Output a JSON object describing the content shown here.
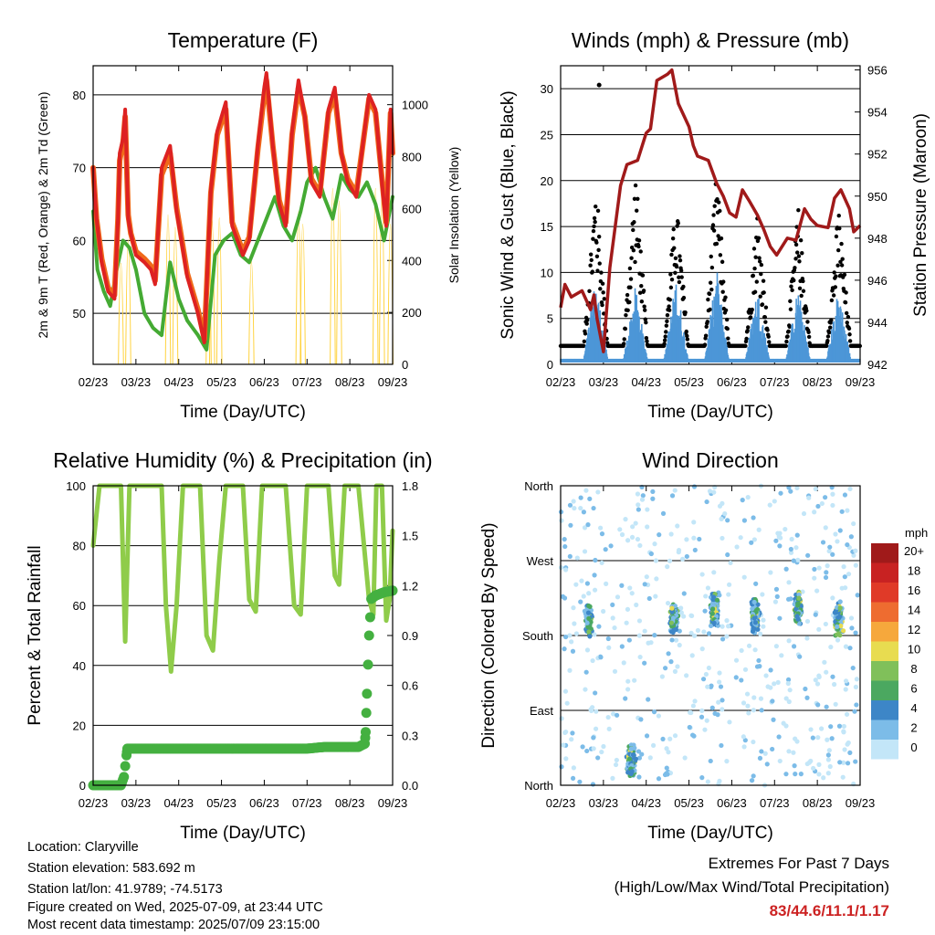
{
  "footer": {
    "location": "Location: Claryville",
    "elevation": "Station elevation: 583.692 m",
    "latlon": "Station lat/lon: 41.9789; -74.5173",
    "created": "Figure created on Wed, 2025-07-09, at 23:44 UTC",
    "recent": "Most recent data timestamp: 2025/07/09 23:15:00"
  },
  "extremes": {
    "title": "Extremes For Past 7 Days",
    "subtitle": "(High/Low/Max Wind/Total Precipitation)",
    "values": "83/44.6/11.1/1.17",
    "color": "#cc2222"
  },
  "chart_data": [
    {
      "id": "temperature",
      "type": "line",
      "title": "Temperature (F)",
      "xlabel": "Time (Day/UTC)",
      "ylabel": "2m & 9m T (Red, Orange) & 2m Td (Green)",
      "y2label": "Solar Insolation (Yellow)",
      "x_ticks": [
        "02/23",
        "03/23",
        "04/23",
        "05/23",
        "06/23",
        "07/23",
        "08/23",
        "09/23"
      ],
      "xlim": [
        0,
        7
      ],
      "ylim": [
        43,
        84
      ],
      "y_ticks": [
        50,
        60,
        70,
        80
      ],
      "y2lim": [
        0,
        1150
      ],
      "y2_ticks": [
        0,
        200,
        400,
        600,
        800,
        1000
      ],
      "grid_y": true,
      "series": [
        {
          "color": "#dd2222",
          "x": [
            0,
            0.08,
            0.2,
            0.35,
            0.5,
            0.58,
            0.62,
            0.7,
            0.75,
            0.82,
            0.88,
            1.0,
            1.2,
            1.35,
            1.45,
            1.6,
            1.8,
            1.95,
            2.2,
            2.45,
            2.6,
            2.75,
            2.9,
            3.1,
            3.25,
            3.5,
            3.65,
            3.85,
            4.0,
            4.05,
            4.2,
            4.35,
            4.5,
            4.65,
            4.8,
            4.95,
            5.1,
            5.3,
            5.5,
            5.65,
            5.8,
            5.95,
            6.15,
            6.3,
            6.45,
            6.6,
            6.75,
            6.85,
            6.95,
            7.0
          ],
          "values": [
            70,
            63,
            57,
            53,
            52,
            63,
            72,
            74,
            78,
            63,
            61,
            58,
            57,
            56,
            54,
            70,
            73,
            64,
            55,
            50,
            46,
            67,
            75,
            79,
            62,
            58,
            60,
            73,
            81,
            83,
            73,
            65,
            62,
            75,
            82,
            77,
            68,
            66,
            78,
            81,
            72,
            68,
            66,
            73,
            80,
            78,
            68,
            62,
            78,
            72
          ]
        },
        {
          "color": "#f06a1a",
          "x": [
            0,
            0.08,
            0.2,
            0.35,
            0.5,
            0.58,
            0.62,
            0.7,
            0.75,
            0.82,
            0.88,
            1.0,
            1.2,
            1.35,
            1.45,
            1.6,
            1.8,
            1.95,
            2.2,
            2.45,
            2.6,
            2.75,
            2.9,
            3.1,
            3.25,
            3.5,
            3.65,
            3.85,
            4.0,
            4.05,
            4.2,
            4.35,
            4.5,
            4.65,
            4.8,
            4.95,
            5.1,
            5.3,
            5.5,
            5.65,
            5.8,
            5.95,
            6.15,
            6.3,
            6.45,
            6.6,
            6.75,
            6.85,
            6.95,
            7.0
          ],
          "values": [
            70,
            63,
            57.5,
            53.5,
            52.5,
            63,
            71,
            73.5,
            77,
            63.5,
            61,
            58.5,
            57.5,
            56.5,
            54.5,
            69,
            72,
            64.5,
            55.5,
            50.5,
            46.5,
            66.5,
            74.5,
            78,
            62.5,
            58.5,
            60.5,
            72.5,
            80,
            82,
            73,
            65.5,
            62.5,
            74.5,
            81,
            77,
            68.5,
            66.5,
            77.5,
            80,
            72,
            68.5,
            66.5,
            73,
            79.5,
            77.5,
            68.5,
            62.5,
            77.5,
            72
          ]
        },
        {
          "color": "#44aa33",
          "x": [
            0,
            0.1,
            0.25,
            0.4,
            0.55,
            0.7,
            0.85,
            1.0,
            1.2,
            1.4,
            1.6,
            1.8,
            2.0,
            2.2,
            2.45,
            2.65,
            2.85,
            3.05,
            3.25,
            3.45,
            3.65,
            3.85,
            4.05,
            4.25,
            4.45,
            4.65,
            4.85,
            5.0,
            5.2,
            5.4,
            5.6,
            5.8,
            6.0,
            6.2,
            6.4,
            6.6,
            6.8,
            7.0
          ],
          "values": [
            64,
            56,
            53,
            51,
            56,
            60,
            59,
            56,
            50,
            48,
            47,
            57,
            52,
            49,
            47,
            45,
            58,
            60,
            61,
            58,
            57,
            60,
            63,
            66,
            62,
            60,
            64,
            68,
            70,
            66,
            63,
            69,
            67,
            66,
            68,
            65,
            60,
            66
          ]
        }
      ],
      "solar_color": "#ffd23c",
      "solar_peaks": [
        {
          "x": 0.65,
          "value": 650
        },
        {
          "x": 0.82,
          "value": 800
        },
        {
          "x": 1.75,
          "value": 960
        },
        {
          "x": 1.92,
          "value": 880
        },
        {
          "x": 2.7,
          "value": 800
        },
        {
          "x": 2.78,
          "value": 930
        },
        {
          "x": 2.95,
          "value": 940
        },
        {
          "x": 3.7,
          "value": 660
        },
        {
          "x": 4.8,
          "value": 980
        },
        {
          "x": 4.9,
          "value": 900
        },
        {
          "x": 5.6,
          "value": 1130
        },
        {
          "x": 5.75,
          "value": 1050
        },
        {
          "x": 6.6,
          "value": 1130
        },
        {
          "x": 6.75,
          "value": 1090
        },
        {
          "x": 6.95,
          "value": 900
        }
      ]
    },
    {
      "id": "winds",
      "type": "scatter",
      "title": "Winds (mph) & Pressure (mb)",
      "xlabel": "Time (Day/UTC)",
      "ylabel": "Sonic Wind & Gust (Blue, Black)",
      "y2label": "Station Pressure (Maroon)",
      "x_ticks": [
        "02/23",
        "03/23",
        "04/23",
        "05/23",
        "06/23",
        "07/23",
        "08/23",
        "09/23"
      ],
      "xlim": [
        0,
        7
      ],
      "ylim": [
        0,
        32.5
      ],
      "y_ticks": [
        0,
        5,
        10,
        15,
        20,
        25,
        30
      ],
      "y2lim": [
        942,
        956.2
      ],
      "y2_ticks": [
        942,
        944,
        946,
        948,
        950,
        952,
        954,
        956
      ],
      "grid_y": true,
      "wind_color": "#4c96d7",
      "gust_color": "#000000",
      "pressure_color": "#a01a1a",
      "max_gust": {
        "x": 0.9,
        "value": 30.4
      },
      "pressure": {
        "x": [
          0,
          0.1,
          0.25,
          0.5,
          0.7,
          0.78,
          0.85,
          1.0,
          1.15,
          1.4,
          1.55,
          1.8,
          2.0,
          2.1,
          2.25,
          2.5,
          2.6,
          2.75,
          3.0,
          3.1,
          3.2,
          3.45,
          3.65,
          3.8,
          3.95,
          4.1,
          4.25,
          4.4,
          4.6,
          4.75,
          4.9,
          5.05,
          5.3,
          5.5,
          5.7,
          5.85,
          6.0,
          6.25,
          6.4,
          6.55,
          6.75,
          6.85,
          7.0
        ],
        "values": [
          944.7,
          945.8,
          945.2,
          945.5,
          944.6,
          945.3,
          944.2,
          942.6,
          946.6,
          950.5,
          951.5,
          951.7,
          953.0,
          953.2,
          955.5,
          955.8,
          956.0,
          954.4,
          953.3,
          952.4,
          951.9,
          951.7,
          950.6,
          950.0,
          949.2,
          949.0,
          950.3,
          949.8,
          949.1,
          948.4,
          947.6,
          947.2,
          948.0,
          947.9,
          949.4,
          948.9,
          948.6,
          948.5,
          949.9,
          950.3,
          949.4,
          948.3,
          948.6
        ]
      },
      "day_peaks": [
        {
          "x": 0.82,
          "gust": 17,
          "wind": 9
        },
        {
          "x": 1.75,
          "gust": 18,
          "wind": 8
        },
        {
          "x": 2.7,
          "gust": 15,
          "wind": 9
        },
        {
          "x": 3.65,
          "gust": 18,
          "wind": 10
        },
        {
          "x": 4.6,
          "gust": 14,
          "wind": 8
        },
        {
          "x": 5.55,
          "gust": 14,
          "wind": 8
        },
        {
          "x": 6.5,
          "gust": 14,
          "wind": 8
        }
      ]
    },
    {
      "id": "humidity",
      "type": "line",
      "title": "Relative Humidity (%) & Precipitation (in)",
      "xlabel": "Time (Day/UTC)",
      "ylabel": "Percent & Total Rainfall",
      "x_ticks": [
        "02/23",
        "03/23",
        "04/23",
        "05/23",
        "06/23",
        "07/23",
        "08/23",
        "09/23"
      ],
      "xlim": [
        0,
        7
      ],
      "ylim": [
        0,
        100
      ],
      "y_ticks": [
        0,
        20,
        40,
        60,
        80,
        100
      ],
      "y2lim": [
        0,
        1.8
      ],
      "y2_ticks": [
        "0.0",
        "0.3",
        "0.6",
        "0.9",
        "1.2",
        "1.5",
        "1.8"
      ],
      "grid_y": true,
      "rh_color": "#8fcc4a",
      "precip_color": "#44b040",
      "rh": {
        "x": [
          0,
          0.15,
          0.3,
          0.45,
          0.65,
          0.75,
          0.85,
          0.95,
          1.05,
          1.2,
          1.4,
          1.6,
          1.7,
          1.82,
          1.95,
          2.1,
          2.3,
          2.5,
          2.65,
          2.8,
          2.95,
          3.1,
          3.3,
          3.5,
          3.65,
          3.8,
          3.95,
          4.1,
          4.3,
          4.5,
          4.7,
          4.85,
          5.0,
          5.1,
          5.3,
          5.5,
          5.65,
          5.75,
          5.88,
          6.0,
          6.2,
          6.45,
          6.55,
          6.62,
          6.75,
          6.85,
          6.93,
          7.0
        ],
        "values": [
          80,
          100,
          100,
          100,
          100,
          48,
          100,
          100,
          100,
          100,
          100,
          100,
          60,
          38,
          60,
          100,
          100,
          100,
          50,
          45,
          75,
          100,
          100,
          100,
          62,
          58,
          100,
          100,
          100,
          100,
          60,
          57,
          100,
          100,
          100,
          100,
          70,
          67,
          100,
          100,
          100,
          62,
          57,
          100,
          100,
          55,
          62,
          85
        ]
      },
      "precip": {
        "x": [
          0,
          0.2,
          0.4,
          0.55,
          0.65,
          0.72,
          0.78,
          0.8,
          1.0,
          2.0,
          3.0,
          4.0,
          5.0,
          5.4,
          5.8,
          6.0,
          6.2,
          6.35,
          6.37,
          6.4,
          6.45,
          6.5,
          6.6,
          6.8,
          7.0
        ],
        "values": [
          0,
          0,
          0,
          0,
          0,
          0.05,
          0.18,
          0.22,
          0.22,
          0.22,
          0.22,
          0.22,
          0.22,
          0.23,
          0.23,
          0.23,
          0.23,
          0.25,
          0.32,
          0.55,
          0.9,
          1.12,
          1.14,
          1.16,
          1.17
        ]
      }
    },
    {
      "id": "direction",
      "type": "scatter",
      "title": "Wind Direction",
      "xlabel": "Time (Day/UTC)",
      "ylabel": "Direction (Colored By Speed)",
      "x_ticks": [
        "02/23",
        "03/23",
        "04/23",
        "05/23",
        "06/23",
        "07/23",
        "08/23",
        "09/23"
      ],
      "xlim": [
        0,
        7
      ],
      "ylim": [
        0,
        360
      ],
      "y_ticks": [
        "North",
        "East",
        "South",
        "West",
        "North"
      ],
      "grid_y": true,
      "legend_title": "mph",
      "legend": [
        {
          "label": "0",
          "color": "#c3e6f8"
        },
        {
          "label": "2",
          "color": "#7cbce8"
        },
        {
          "label": "4",
          "color": "#3d86c7"
        },
        {
          "label": "6",
          "color": "#4ba860"
        },
        {
          "label": "8",
          "color": "#80c05a"
        },
        {
          "label": "10",
          "color": "#e8dc50"
        },
        {
          "label": "12",
          "color": "#f6a83c"
        },
        {
          "label": "14",
          "color": "#ee6c30"
        },
        {
          "label": "16",
          "color": "#e03a28"
        },
        {
          "label": "18",
          "color": "#c82222"
        },
        {
          "label": "20+",
          "color": "#a01a1a"
        }
      ],
      "clusters": [
        {
          "x": 0.65,
          "dir": 200,
          "n": 30
        },
        {
          "x": 1.65,
          "dir": 30,
          "n": 50
        },
        {
          "x": 2.65,
          "dir": 200,
          "n": 40
        },
        {
          "x": 3.6,
          "dir": 210,
          "n": 50
        },
        {
          "x": 4.55,
          "dir": 205,
          "n": 45
        },
        {
          "x": 5.55,
          "dir": 210,
          "n": 40
        },
        {
          "x": 6.5,
          "dir": 200,
          "n": 35
        }
      ]
    }
  ]
}
